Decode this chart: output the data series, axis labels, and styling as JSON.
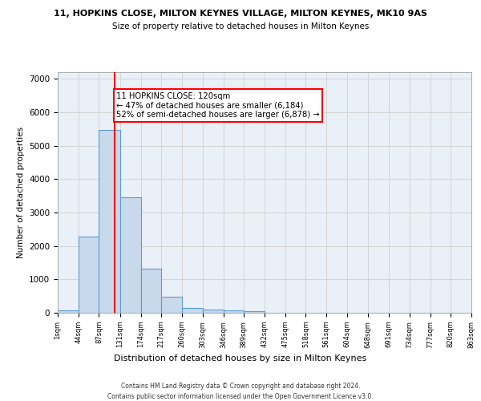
{
  "title1": "11, HOPKINS CLOSE, MILTON KEYNES VILLAGE, MILTON KEYNES, MK10 9AS",
  "title2": "Size of property relative to detached houses in Milton Keynes",
  "xlabel": "Distribution of detached houses by size in Milton Keynes",
  "ylabel": "Number of detached properties",
  "footer1": "Contains HM Land Registry data © Crown copyright and database right 2024.",
  "footer2": "Contains public sector information licensed under the Open Government Licence v3.0.",
  "bar_color": "#c9d9ec",
  "bar_edgecolor": "#5b9bd5",
  "bar_linewidth": 0.8,
  "vline_x": 120,
  "vline_color": "red",
  "annotation_text": "11 HOPKINS CLOSE: 120sqm\n← 47% of detached houses are smaller (6,184)\n52% of semi-detached houses are larger (6,878) →",
  "annotation_box_color": "red",
  "ylim": [
    0,
    7200
  ],
  "yticks": [
    0,
    1000,
    2000,
    3000,
    4000,
    5000,
    6000,
    7000
  ],
  "bin_edges": [
    1,
    44,
    87,
    131,
    174,
    217,
    260,
    303,
    346,
    389,
    432,
    475,
    518,
    561,
    604,
    648,
    691,
    734,
    777,
    820,
    863
  ],
  "bar_heights": [
    80,
    2280,
    5480,
    3450,
    1310,
    470,
    155,
    100,
    70,
    45,
    0,
    0,
    0,
    0,
    0,
    0,
    0,
    0,
    0,
    0
  ],
  "tick_labels": [
    "1sqm",
    "44sqm",
    "87sqm",
    "131sqm",
    "174sqm",
    "217sqm",
    "260sqm",
    "303sqm",
    "346sqm",
    "389sqm",
    "432sqm",
    "475sqm",
    "518sqm",
    "561sqm",
    "604sqm",
    "648sqm",
    "691sqm",
    "734sqm",
    "777sqm",
    "820sqm",
    "863sqm"
  ],
  "grid_color": "#d0d0d0",
  "bg_color": "#eaf0f8",
  "title1_fontsize": 8.0,
  "title2_fontsize": 7.5,
  "ylabel_fontsize": 7.5,
  "xlabel_fontsize": 8.0,
  "ytick_fontsize": 7.5,
  "xtick_fontsize": 6.0,
  "footer_fontsize": 5.5,
  "annot_fontsize": 7.2
}
